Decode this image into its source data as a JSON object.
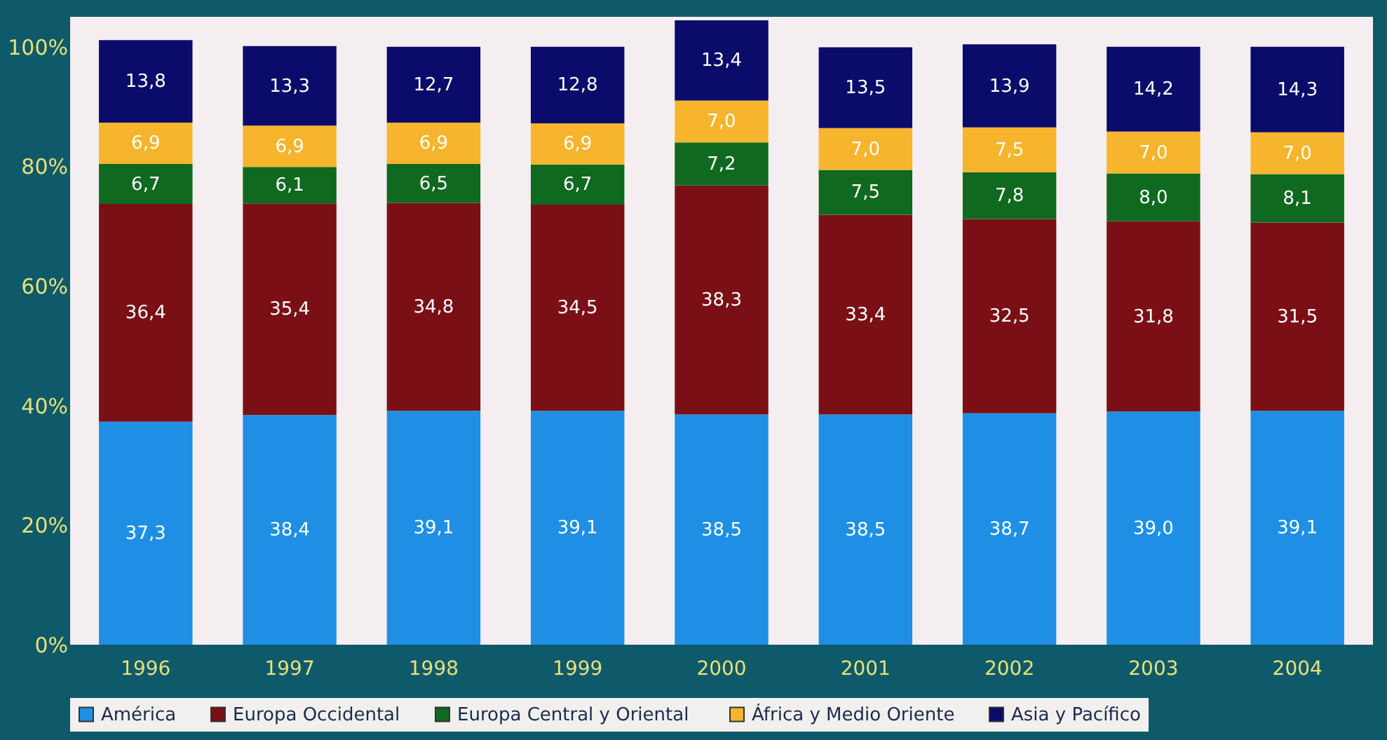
{
  "chart_data": {
    "type": "bar",
    "stacked": true,
    "categories": [
      "1996",
      "1997",
      "1998",
      "1999",
      "2000",
      "2001",
      "2002",
      "2003",
      "2004"
    ],
    "series": [
      {
        "name": "América",
        "color": "#1f8fe6",
        "values": [
          37.3,
          38.4,
          39.1,
          39.1,
          38.5,
          38.5,
          38.7,
          39.0,
          39.1
        ],
        "value_labels": [
          "37,3",
          "38,4",
          "39,1",
          "39,1",
          "38,5",
          "38,5",
          "38,7",
          "39,0",
          "39,1"
        ]
      },
      {
        "name": "Europa Occidental",
        "color": "#7a1016",
        "values": [
          36.4,
          35.4,
          34.8,
          34.5,
          38.3,
          33.4,
          32.5,
          31.8,
          31.5
        ],
        "value_labels": [
          "36,4",
          "35,4",
          "34,8",
          "34,5",
          "38,3",
          "33,4",
          "32,5",
          "31,8",
          "31,5"
        ]
      },
      {
        "name": "Europa Central y  Oriental",
        "color": "#0f6a1f",
        "values": [
          6.7,
          6.1,
          6.5,
          6.7,
          7.2,
          7.5,
          7.8,
          8.0,
          8.1
        ],
        "value_labels": [
          "6,7",
          "6,1",
          "6,5",
          "6,7",
          "7,2",
          "7,5",
          "7,8",
          "8,0",
          "8,1"
        ]
      },
      {
        "name": "África y Medio Oriente",
        "color": "#f6b52c",
        "values": [
          6.9,
          6.9,
          6.9,
          6.9,
          7.0,
          7.0,
          7.5,
          7.0,
          7.0
        ],
        "value_labels": [
          "6,9",
          "6,9",
          "6,9",
          "6,9",
          "7,0",
          "7,0",
          "7,5",
          "7,0",
          "7,0"
        ]
      },
      {
        "name": "Asia y Pacífico",
        "color": "#0b0b6b",
        "values": [
          13.8,
          13.3,
          12.7,
          12.8,
          13.4,
          13.5,
          13.9,
          14.2,
          14.3
        ],
        "value_labels": [
          "13,8",
          "13,3",
          "12,7",
          "12,8",
          "13,4",
          "13,5",
          "13,9",
          "14,2",
          "14,3"
        ]
      }
    ],
    "ylim": [
      0,
      105
    ],
    "yticks": [
      {
        "value": 0,
        "label": "0%"
      },
      {
        "value": 20,
        "label": "20%"
      },
      {
        "value": 40,
        "label": "40%"
      },
      {
        "value": 60,
        "label": "60%"
      },
      {
        "value": 80,
        "label": "80%"
      },
      {
        "value": 100,
        "label": "100%"
      }
    ],
    "legend": "bottom",
    "grid": false
  }
}
